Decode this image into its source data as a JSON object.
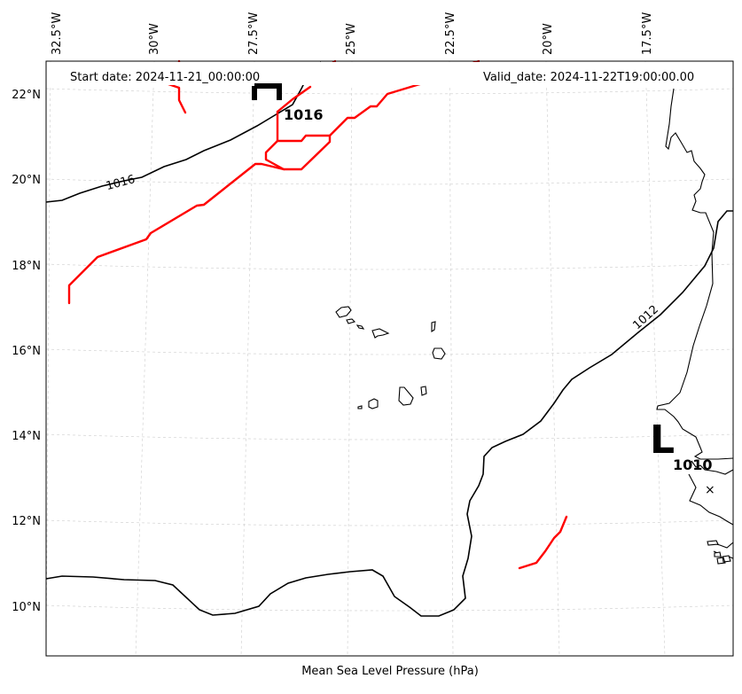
{
  "header": {
    "start_date": "Start date: 2024-11-21_00:00:00",
    "valid_date": "Valid_date: 2024-11-22T19:00:00.00"
  },
  "xlabel": "Mean Sea Level Pressure (hPa)",
  "lon_ticks": [
    "32.5°W",
    "30°W",
    "27.5°W",
    "25°W",
    "22.5°W",
    "20°W",
    "17.5°W"
  ],
  "lat_ticks": [
    "22°N",
    "20°N",
    "18°N",
    "16°N",
    "14°N",
    "12°N",
    "10°N"
  ],
  "isobar_labels": [
    "1016",
    "1012"
  ],
  "pressure_centers": [
    {
      "letter": "H",
      "value": "1016"
    },
    {
      "letter": "L",
      "value": "1010"
    }
  ],
  "colors": {
    "isobar": "#000000",
    "front": "#ff0000",
    "gridline": "#cccccc",
    "background": "#ffffff"
  }
}
